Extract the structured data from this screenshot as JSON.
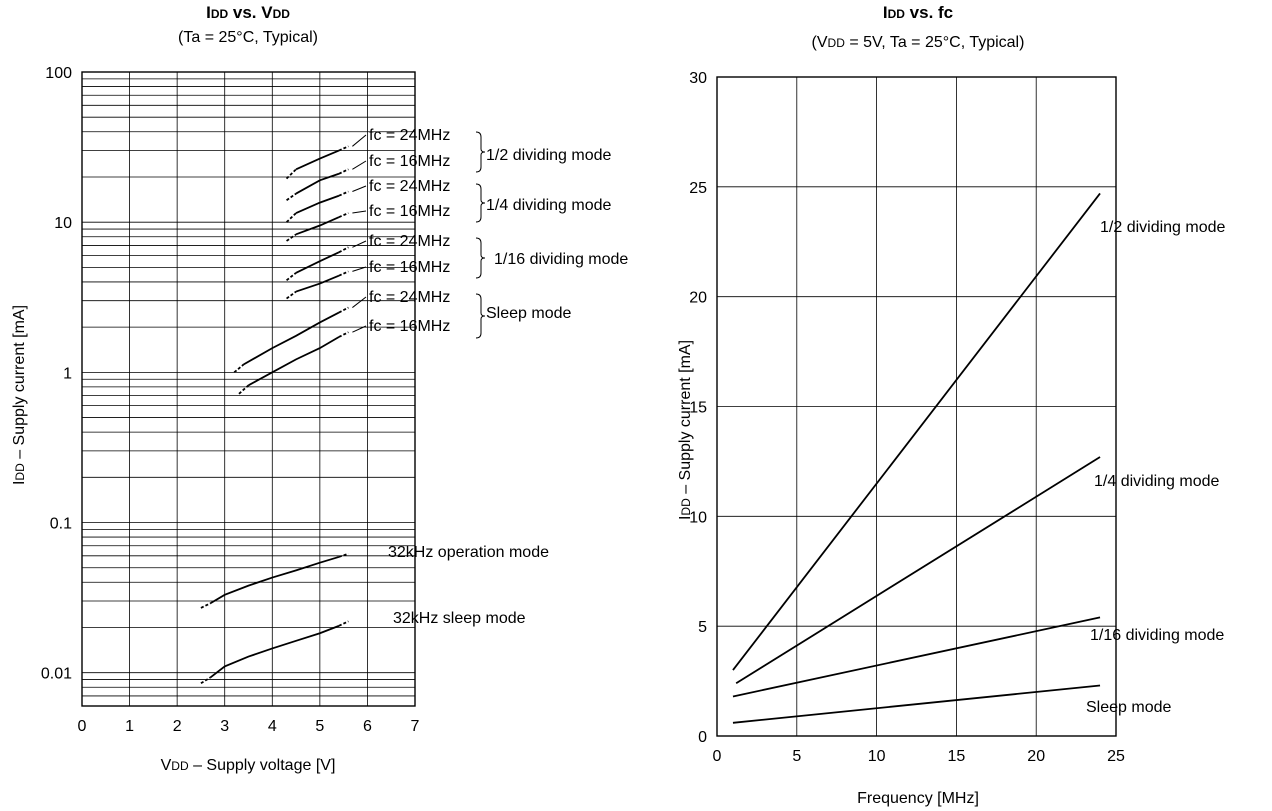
{
  "chart_data": [
    {
      "type": "line",
      "title": "IDD vs. VDD",
      "subtitle": "(Ta = 25°C, Typical)",
      "xlabel": "VDD – Supply voltage [V]",
      "ylabel": "IDD – Supply current [mA]",
      "xlim": [
        0,
        7
      ],
      "ylim": [
        0.006,
        100
      ],
      "yscale": "log",
      "grid": true,
      "x_ticks": [
        "0",
        "1",
        "2",
        "3",
        "4",
        "5",
        "6",
        "7"
      ],
      "y_ticks": [
        {
          "value": 100,
          "label": "100"
        },
        {
          "value": 10,
          "label": "10"
        },
        {
          "value": 1,
          "label": "1"
        },
        {
          "value": 0.1,
          "label": "0.1"
        },
        {
          "value": 0.01,
          "label": "0.01"
        }
      ],
      "series": [
        {
          "x": [
            4.3,
            4.5,
            5.0,
            5.4,
            5.6
          ],
          "y": [
            19.5,
            22.5,
            26.5,
            30.0,
            32.0
          ]
        },
        {
          "x": [
            4.3,
            4.5,
            5.0,
            5.4,
            5.6
          ],
          "y": [
            14.0,
            15.5,
            19.0,
            21.0,
            22.5
          ]
        },
        {
          "x": [
            4.3,
            4.5,
            5.0,
            5.4,
            5.6
          ],
          "y": [
            10.0,
            11.5,
            13.5,
            15.0,
            16.0
          ]
        },
        {
          "x": [
            4.3,
            4.5,
            5.0,
            5.4,
            5.6
          ],
          "y": [
            7.5,
            8.3,
            9.5,
            10.8,
            11.5
          ]
        },
        {
          "x": [
            4.3,
            4.5,
            5.0,
            5.4,
            5.6
          ],
          "y": [
            4.1,
            4.6,
            5.5,
            6.3,
            6.8
          ]
        },
        {
          "x": [
            4.3,
            4.5,
            5.0,
            5.4,
            5.6
          ],
          "y": [
            3.1,
            3.45,
            3.9,
            4.4,
            4.7
          ]
        },
        {
          "x": [
            3.2,
            3.4,
            4.0,
            4.5,
            5.0,
            5.4,
            5.6
          ],
          "y": [
            1.0,
            1.13,
            1.45,
            1.75,
            2.15,
            2.5,
            2.7
          ]
        },
        {
          "x": [
            3.3,
            3.5,
            4.0,
            4.5,
            5.0,
            5.4,
            5.6
          ],
          "y": [
            0.72,
            0.82,
            1.0,
            1.22,
            1.45,
            1.72,
            1.85
          ]
        },
        {
          "x": [
            2.5,
            2.7,
            3.0,
            3.5,
            4.0,
            4.5,
            5.0,
            5.4,
            5.6
          ],
          "y": [
            0.027,
            0.029,
            0.033,
            0.038,
            0.043,
            0.048,
            0.054,
            0.059,
            0.062
          ]
        },
        {
          "x": [
            2.5,
            2.7,
            3.0,
            3.5,
            4.0,
            4.5,
            5.0,
            5.4,
            5.6
          ],
          "y": [
            0.0085,
            0.0093,
            0.011,
            0.0128,
            0.0145,
            0.0163,
            0.0183,
            0.0205,
            0.022
          ]
        }
      ],
      "annotations": {
        "fc_labels": [
          "fc = 24MHz",
          "fc = 16MHz",
          "fc = 24MHz",
          "fc = 16MHz",
          "fc = 24MHz",
          "fc = 16MHz",
          "fc = 24MHz",
          "fc = 16MHz"
        ],
        "mode_labels": [
          "1/2 dividing mode",
          "1/4 dividing mode",
          "1/16 dividing mode",
          "Sleep mode"
        ],
        "low_labels": [
          "32kHz operation mode",
          "32kHz sleep mode"
        ]
      }
    },
    {
      "type": "line",
      "title": "IDD vs.  fc",
      "subtitle": "(VDD = 5V,  Ta = 25°C, Typical)",
      "xlabel": "Frequency [MHz]",
      "ylabel": "IDD – Supply current [mA]",
      "xlim": [
        0,
        25
      ],
      "ylim": [
        0,
        30
      ],
      "grid": true,
      "x_ticks": [
        "0",
        "5",
        "10",
        "15",
        "20",
        "25"
      ],
      "y_ticks": [
        "0",
        "5",
        "10",
        "15",
        "20",
        "25",
        "30"
      ],
      "series": [
        {
          "name": "1/2 dividing mode",
          "x": [
            1,
            24
          ],
          "y": [
            3.0,
            24.7
          ]
        },
        {
          "name": "1/4 dividing mode",
          "x": [
            1.2,
            24
          ],
          "y": [
            2.4,
            12.7
          ]
        },
        {
          "name": "1/16 dividing mode",
          "x": [
            1,
            24
          ],
          "y": [
            1.8,
            5.4
          ]
        },
        {
          "name": "Sleep mode",
          "x": [
            1,
            24
          ],
          "y": [
            0.6,
            2.3
          ]
        }
      ]
    }
  ]
}
